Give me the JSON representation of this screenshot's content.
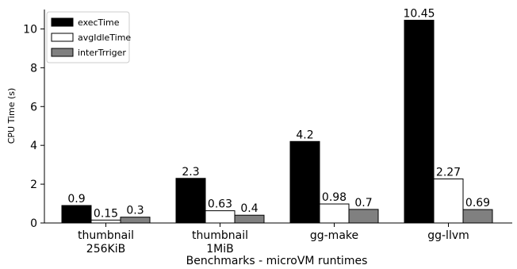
{
  "chart_data": {
    "type": "bar",
    "xlabel": "Benchmarks - microVM runtimes",
    "ylabel": "CPU Time (s)",
    "ylim": [
      0,
      11
    ],
    "yticks": [
      0,
      2,
      4,
      6,
      8,
      10
    ],
    "grid": false,
    "legend_position": "top-left",
    "categories": [
      [
        "thumbnail",
        "256KiB"
      ],
      [
        "thumbnail",
        "1MiB"
      ],
      [
        "gg-make"
      ],
      [
        "gg-llvm"
      ]
    ],
    "series": [
      {
        "name": "execTime",
        "color": "#000000",
        "values": [
          0.9,
          2.3,
          4.2,
          10.45
        ],
        "labels": [
          "0.9",
          "2.3",
          "4.2",
          "10.45"
        ]
      },
      {
        "name": "avgIdleTime",
        "color": "#ffffff",
        "values": [
          0.15,
          0.63,
          0.98,
          2.27
        ],
        "labels": [
          "0.15",
          "0.63",
          "0.98",
          "2.27"
        ]
      },
      {
        "name": "interTrriger",
        "color": "#808080",
        "values": [
          0.3,
          0.4,
          0.7,
          0.69
        ],
        "labels": [
          "0.3",
          "0.4",
          "0.7",
          "0.69"
        ]
      }
    ]
  }
}
